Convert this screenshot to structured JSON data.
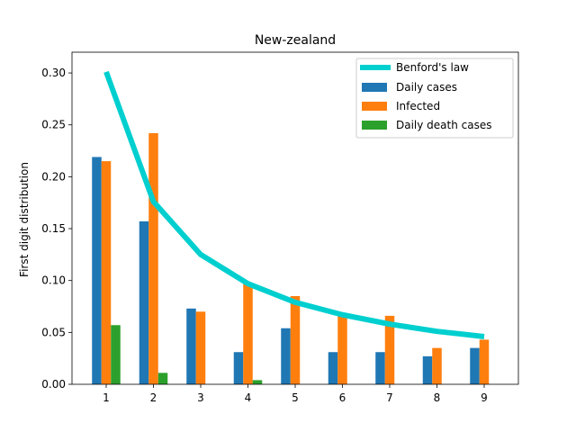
{
  "chart_data": {
    "type": "bar",
    "title": "New-zealand",
    "xlabel": "",
    "ylabel": "First digit distribution",
    "categories": [
      "1",
      "2",
      "3",
      "4",
      "5",
      "6",
      "7",
      "8",
      "9"
    ],
    "ylim": [
      0,
      0.32
    ],
    "yticks": [
      "0.00",
      "0.05",
      "0.10",
      "0.15",
      "0.20",
      "0.25",
      "0.30"
    ],
    "grid": false,
    "legend_position": "top-right",
    "line_series": {
      "name": "Benford's law",
      "color": "#00cfcf",
      "values": [
        0.301,
        0.176,
        0.125,
        0.097,
        0.079,
        0.067,
        0.058,
        0.051,
        0.046
      ]
    },
    "series": [
      {
        "name": "Daily cases",
        "color": "#1f77b4",
        "values": [
          0.219,
          0.157,
          0.073,
          0.031,
          0.054,
          0.031,
          0.031,
          0.027,
          0.035
        ]
      },
      {
        "name": "Infected",
        "color": "#ff7f0e",
        "values": [
          0.215,
          0.242,
          0.07,
          0.098,
          0.085,
          0.068,
          0.066,
          0.035,
          0.043
        ]
      },
      {
        "name": "Daily death cases",
        "color": "#2ca02c",
        "values": [
          0.057,
          0.011,
          0.0,
          0.004,
          0.0,
          0.0,
          0.0,
          0.0,
          0.0
        ]
      }
    ]
  }
}
